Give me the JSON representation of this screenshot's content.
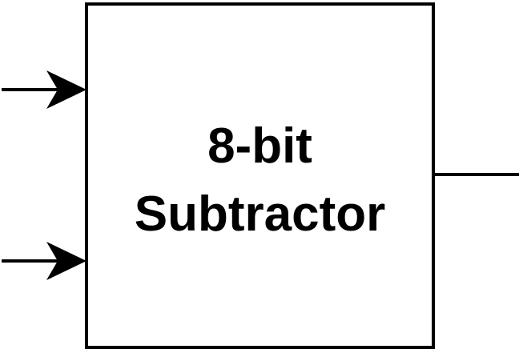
{
  "block": {
    "line1": "8-bit",
    "line2": "Subtractor"
  },
  "colors": {
    "stroke": "#000000",
    "background": "#ffffff"
  }
}
